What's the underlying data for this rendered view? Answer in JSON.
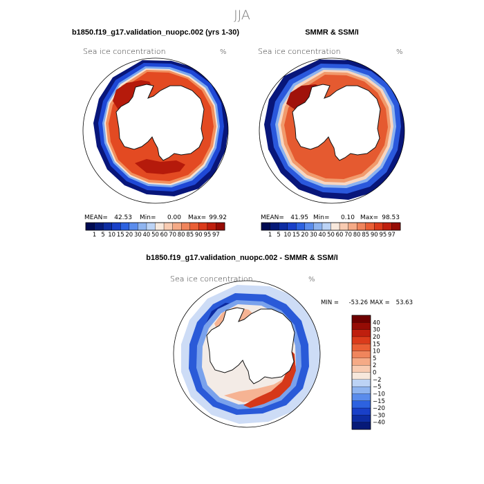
{
  "figure": {
    "season_title": "JJA",
    "colors": {
      "palette_positive": [
        "#f7e8dc",
        "#f8cbb1",
        "#f5aa86",
        "#f0855c",
        "#ea5f35",
        "#db3b1b",
        "#bf1f0e",
        "#960c05",
        "#6e0000"
      ],
      "palette_negative": [
        "#e2ebf8",
        "#bcd3f5",
        "#8fb4ef",
        "#5a8cec",
        "#2d62e0",
        "#1940c8",
        "#0d2ca2",
        "#061a78",
        "#000a52"
      ],
      "coast": "#111111",
      "land": "#ffffff"
    }
  },
  "chart_data": [
    {
      "id": "model",
      "type": "heatmap",
      "projection": "south-polar-stereographic",
      "title": "b1850.f19_g17.validation_nuopc.002 (yrs 1-30)",
      "variable": "Sea ice concentration",
      "units": "%",
      "stats": {
        "mean_label": "MEAN=",
        "mean": "42.53",
        "min_label": "Min=",
        "min": "0.00",
        "max_label": "Max=",
        "max": "99.92"
      },
      "colorbar_ticks": [
        "1",
        "5",
        "10",
        "15",
        "20",
        "30",
        "40",
        "50",
        "60",
        "70",
        "80",
        "85",
        "90",
        "95",
        "97"
      ]
    },
    {
      "id": "obs",
      "type": "heatmap",
      "projection": "south-polar-stereographic",
      "title": "SMMR & SSM/I",
      "variable": "Sea ice concentration",
      "units": "%",
      "stats": {
        "mean_label": "MEAN=",
        "mean": "41.95",
        "min_label": "Min=",
        "min": "0.10",
        "max_label": "Max=",
        "max": "98.53"
      },
      "colorbar_ticks": [
        "1",
        "5",
        "10",
        "15",
        "20",
        "30",
        "40",
        "50",
        "60",
        "70",
        "80",
        "85",
        "90",
        "95",
        "97"
      ]
    },
    {
      "id": "diff",
      "type": "heatmap",
      "projection": "south-polar-stereographic",
      "title": "b1850.f19_g17.validation_nuopc.002 - SMMR & SSM/I",
      "variable": "Sea ice concentration",
      "units": "%",
      "stats": {
        "min_label": "MIN =",
        "min": "-53.26",
        "max_label": "MAX =",
        "max": "53.63"
      },
      "colorbar_ticks": [
        "40",
        "30",
        "20",
        "15",
        "10",
        "5",
        "2",
        "0",
        "−2",
        "−5",
        "−10",
        "−15",
        "−20",
        "−30",
        "−40"
      ]
    }
  ]
}
